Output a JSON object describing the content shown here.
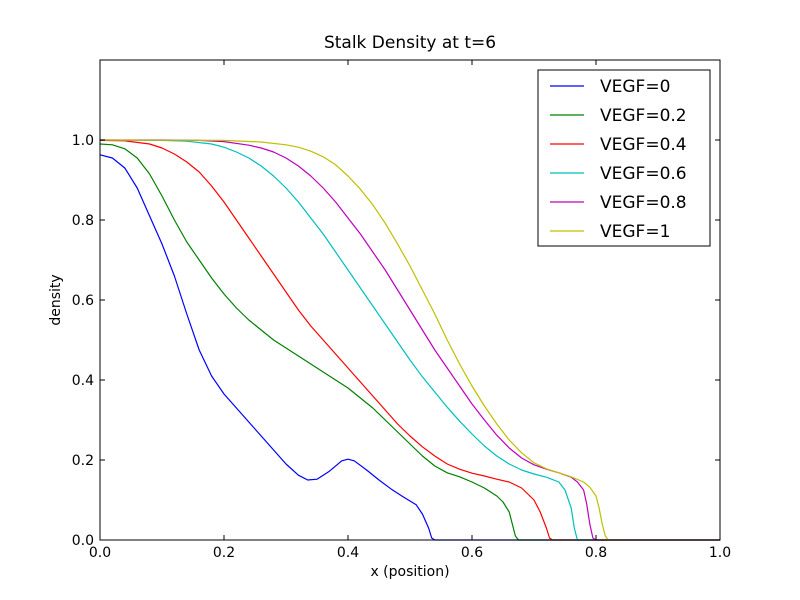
{
  "chart_data": {
    "type": "line",
    "title": "Stalk Density at t=6",
    "xlabel": "x (position)",
    "ylabel": "density",
    "xlim": [
      0.0,
      1.0
    ],
    "ylim": [
      0.0,
      1.2
    ],
    "xticks": [
      0.0,
      0.2,
      0.4,
      0.6,
      0.8,
      1.0
    ],
    "xtick_labels": [
      "0.0",
      "0.2",
      "0.4",
      "0.6",
      "0.8",
      "1.0"
    ],
    "yticks": [
      0.0,
      0.2,
      0.4,
      0.6,
      0.8,
      1.0
    ],
    "ytick_labels": [
      "0.0",
      "0.2",
      "0.4",
      "0.6",
      "0.8",
      "1.0"
    ],
    "grid": false,
    "legend_position": "top-right",
    "series": [
      {
        "name": "VEGF=0",
        "color": "#0000ff",
        "x": [
          0.0,
          0.02,
          0.04,
          0.06,
          0.08,
          0.1,
          0.12,
          0.14,
          0.16,
          0.18,
          0.2,
          0.22,
          0.24,
          0.26,
          0.28,
          0.3,
          0.32,
          0.335,
          0.35,
          0.37,
          0.39,
          0.4,
          0.41,
          0.43,
          0.45,
          0.47,
          0.49,
          0.51,
          0.52,
          0.53,
          0.535,
          0.54,
          0.56,
          0.6,
          0.7,
          0.8,
          0.9,
          1.0
        ],
        "y": [
          0.963,
          0.955,
          0.93,
          0.88,
          0.81,
          0.74,
          0.66,
          0.565,
          0.475,
          0.41,
          0.365,
          0.33,
          0.295,
          0.26,
          0.225,
          0.19,
          0.162,
          0.15,
          0.152,
          0.172,
          0.198,
          0.202,
          0.198,
          0.175,
          0.15,
          0.127,
          0.107,
          0.088,
          0.065,
          0.03,
          0.005,
          0.0,
          0.0,
          0.0,
          0.0,
          0.0,
          0.0,
          0.0
        ]
      },
      {
        "name": "VEGF=0.2",
        "color": "#008000",
        "x": [
          0.0,
          0.02,
          0.04,
          0.06,
          0.08,
          0.1,
          0.12,
          0.14,
          0.16,
          0.18,
          0.2,
          0.22,
          0.24,
          0.26,
          0.28,
          0.3,
          0.32,
          0.34,
          0.36,
          0.38,
          0.4,
          0.42,
          0.44,
          0.46,
          0.48,
          0.5,
          0.52,
          0.54,
          0.56,
          0.58,
          0.6,
          0.62,
          0.64,
          0.65,
          0.66,
          0.665,
          0.67,
          0.675,
          0.7,
          0.8,
          0.9,
          1.0
        ],
        "y": [
          0.99,
          0.988,
          0.978,
          0.955,
          0.915,
          0.86,
          0.8,
          0.745,
          0.7,
          0.655,
          0.615,
          0.58,
          0.55,
          0.525,
          0.5,
          0.48,
          0.46,
          0.44,
          0.42,
          0.4,
          0.38,
          0.355,
          0.33,
          0.3,
          0.27,
          0.24,
          0.21,
          0.185,
          0.168,
          0.158,
          0.145,
          0.13,
          0.11,
          0.095,
          0.07,
          0.04,
          0.01,
          0.0,
          0.0,
          0.0,
          0.0,
          0.0
        ]
      },
      {
        "name": "VEGF=0.4",
        "color": "#ff0000",
        "x": [
          0.0,
          0.04,
          0.08,
          0.1,
          0.12,
          0.14,
          0.16,
          0.18,
          0.2,
          0.22,
          0.24,
          0.26,
          0.28,
          0.3,
          0.32,
          0.34,
          0.36,
          0.38,
          0.4,
          0.42,
          0.44,
          0.46,
          0.48,
          0.5,
          0.52,
          0.54,
          0.56,
          0.58,
          0.6,
          0.62,
          0.64,
          0.66,
          0.68,
          0.7,
          0.71,
          0.72,
          0.725,
          0.73,
          0.8,
          0.9,
          1.0
        ],
        "y": [
          0.999,
          0.998,
          0.99,
          0.98,
          0.965,
          0.945,
          0.92,
          0.885,
          0.845,
          0.8,
          0.755,
          0.71,
          0.665,
          0.62,
          0.575,
          0.535,
          0.5,
          0.465,
          0.43,
          0.395,
          0.36,
          0.325,
          0.29,
          0.26,
          0.233,
          0.21,
          0.19,
          0.177,
          0.167,
          0.16,
          0.152,
          0.145,
          0.13,
          0.1,
          0.07,
          0.03,
          0.005,
          0.0,
          0.0,
          0.0,
          0.0
        ]
      },
      {
        "name": "VEGF=0.6",
        "color": "#00bfbf",
        "x": [
          0.0,
          0.1,
          0.14,
          0.18,
          0.2,
          0.22,
          0.24,
          0.26,
          0.28,
          0.3,
          0.32,
          0.34,
          0.36,
          0.38,
          0.4,
          0.42,
          0.44,
          0.46,
          0.48,
          0.5,
          0.52,
          0.54,
          0.56,
          0.58,
          0.6,
          0.62,
          0.64,
          0.66,
          0.68,
          0.7,
          0.72,
          0.74,
          0.75,
          0.76,
          0.765,
          0.77,
          0.8,
          0.9,
          1.0
        ],
        "y": [
          1.0,
          0.999,
          0.997,
          0.99,
          0.982,
          0.97,
          0.955,
          0.935,
          0.91,
          0.88,
          0.845,
          0.805,
          0.765,
          0.72,
          0.675,
          0.63,
          0.585,
          0.54,
          0.495,
          0.45,
          0.408,
          0.37,
          0.332,
          0.297,
          0.265,
          0.235,
          0.21,
          0.19,
          0.175,
          0.165,
          0.157,
          0.145,
          0.125,
          0.08,
          0.03,
          0.0,
          0.0,
          0.0,
          0.0
        ]
      },
      {
        "name": "VEGF=0.8",
        "color": "#bf00bf",
        "x": [
          0.0,
          0.1,
          0.16,
          0.2,
          0.24,
          0.26,
          0.28,
          0.3,
          0.32,
          0.34,
          0.36,
          0.38,
          0.4,
          0.42,
          0.44,
          0.46,
          0.48,
          0.5,
          0.52,
          0.54,
          0.56,
          0.58,
          0.6,
          0.62,
          0.64,
          0.66,
          0.68,
          0.7,
          0.72,
          0.74,
          0.76,
          0.77,
          0.78,
          0.785,
          0.79,
          0.795,
          0.8,
          0.9,
          1.0
        ],
        "y": [
          1.0,
          1.0,
          0.999,
          0.996,
          0.987,
          0.98,
          0.97,
          0.955,
          0.935,
          0.91,
          0.88,
          0.845,
          0.805,
          0.765,
          0.72,
          0.675,
          0.625,
          0.575,
          0.525,
          0.475,
          0.43,
          0.385,
          0.34,
          0.3,
          0.262,
          0.23,
          0.205,
          0.188,
          0.177,
          0.168,
          0.157,
          0.145,
          0.125,
          0.09,
          0.04,
          0.005,
          0.0,
          0.0,
          0.0
        ]
      },
      {
        "name": "VEGF=1",
        "color": "#bfbf00",
        "x": [
          0.0,
          0.2,
          0.26,
          0.3,
          0.32,
          0.34,
          0.36,
          0.38,
          0.4,
          0.42,
          0.44,
          0.46,
          0.48,
          0.5,
          0.52,
          0.54,
          0.56,
          0.58,
          0.6,
          0.62,
          0.64,
          0.66,
          0.68,
          0.7,
          0.72,
          0.74,
          0.76,
          0.78,
          0.79,
          0.8,
          0.805,
          0.81,
          0.815,
          0.82,
          0.9,
          1.0
        ],
        "y": [
          1.0,
          0.999,
          0.995,
          0.988,
          0.982,
          0.972,
          0.958,
          0.938,
          0.91,
          0.877,
          0.838,
          0.792,
          0.74,
          0.685,
          0.625,
          0.565,
          0.5,
          0.44,
          0.385,
          0.335,
          0.29,
          0.25,
          0.218,
          0.193,
          0.178,
          0.168,
          0.158,
          0.145,
          0.132,
          0.11,
          0.08,
          0.04,
          0.01,
          0.0,
          0.0,
          0.0
        ]
      }
    ]
  }
}
